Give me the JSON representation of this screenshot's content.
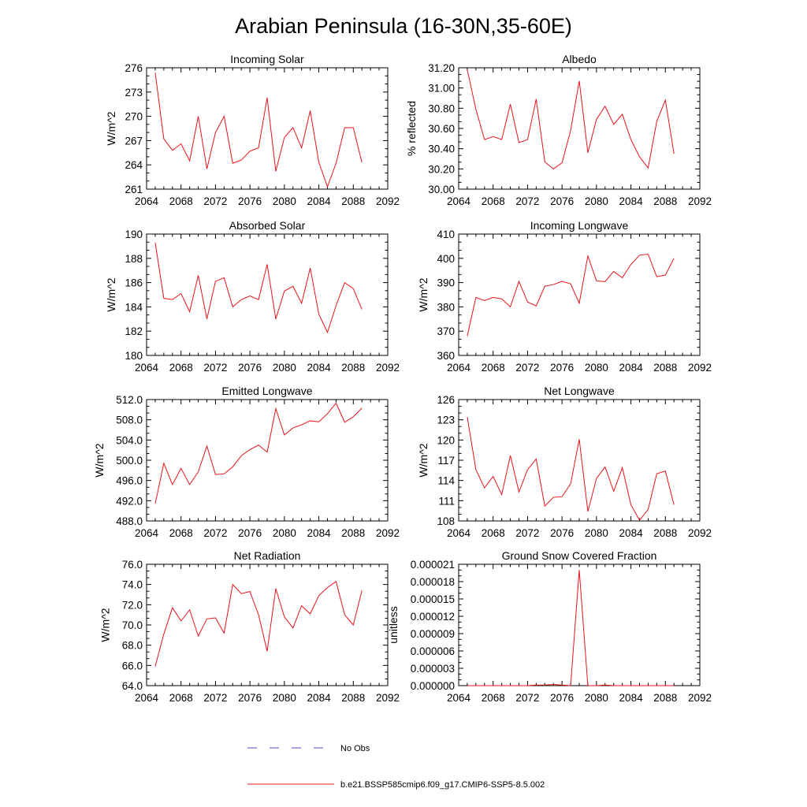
{
  "title": "Arabian Peninsula (16-30N,35-60E)",
  "colors": {
    "series": "#e8131b",
    "obs": "#4b4bd1",
    "axis": "#000000"
  },
  "legend": {
    "placement": "bottom-center",
    "entries": [
      {
        "label": "No Obs",
        "style": "dashed",
        "color": "#4b4bd1"
      },
      {
        "label": "b.e21.BSSP585cmip6.f09_g17.CMIP6-SSP5-8.5.002",
        "style": "solid",
        "color": "#e8131b"
      }
    ]
  },
  "chart_data": [
    {
      "type": "line",
      "title": "Incoming Solar",
      "ylabel": "W/m^2",
      "xlim": [
        2064,
        2092
      ],
      "ylim": [
        261,
        276
      ],
      "xticks": [
        "2064",
        "2068",
        "2072",
        "2076",
        "2080",
        "2084",
        "2088",
        "2092"
      ],
      "yticks": [
        "261",
        "264",
        "267",
        "270",
        "273",
        "276"
      ],
      "x": [
        2065,
        2066,
        2067,
        2068,
        2069,
        2070,
        2071,
        2072,
        2073,
        2074,
        2075,
        2076,
        2077,
        2078,
        2079,
        2080,
        2081,
        2082,
        2083,
        2084,
        2085,
        2086,
        2087,
        2088,
        2089
      ],
      "values": [
        275.4,
        267.2,
        265.8,
        266.6,
        264.5,
        270.0,
        263.5,
        268.0,
        270.0,
        264.2,
        264.6,
        265.7,
        266.1,
        272.3,
        263.2,
        267.4,
        268.6,
        266.1,
        270.7,
        264.3,
        261.3,
        264.2,
        268.6,
        268.6,
        264.3
      ]
    },
    {
      "type": "line",
      "title": "Albedo",
      "ylabel": "% reflected",
      "xlim": [
        2064,
        2092
      ],
      "ylim": [
        30.0,
        31.2
      ],
      "xticks": [
        "2064",
        "2068",
        "2072",
        "2076",
        "2080",
        "2084",
        "2088",
        "2092"
      ],
      "yticks": [
        "30.00",
        "30.20",
        "30.40",
        "30.60",
        "30.80",
        "31.00",
        "31.20"
      ],
      "x": [
        2065,
        2066,
        2067,
        2068,
        2069,
        2070,
        2071,
        2072,
        2073,
        2074,
        2075,
        2076,
        2077,
        2078,
        2079,
        2080,
        2081,
        2082,
        2083,
        2084,
        2085,
        2086,
        2087,
        2088,
        2089
      ],
      "values": [
        31.18,
        30.79,
        30.49,
        30.52,
        30.49,
        30.84,
        30.46,
        30.49,
        30.89,
        30.27,
        30.2,
        30.26,
        30.58,
        31.07,
        30.36,
        30.69,
        30.82,
        30.64,
        30.74,
        30.49,
        30.32,
        30.21,
        30.67,
        30.88,
        30.35
      ]
    },
    {
      "type": "line",
      "title": "Absorbed Solar",
      "ylabel": "W/m^2",
      "xlim": [
        2064,
        2092
      ],
      "ylim": [
        180,
        190
      ],
      "xticks": [
        "2064",
        "2068",
        "2072",
        "2076",
        "2080",
        "2084",
        "2088",
        "2092"
      ],
      "yticks": [
        "180",
        "182",
        "184",
        "186",
        "188",
        "190"
      ],
      "x": [
        2065,
        2066,
        2067,
        2068,
        2069,
        2070,
        2071,
        2072,
        2073,
        2074,
        2075,
        2076,
        2077,
        2078,
        2079,
        2080,
        2081,
        2082,
        2083,
        2084,
        2085,
        2086,
        2087,
        2088,
        2089
      ],
      "values": [
        189.3,
        184.7,
        184.6,
        185.1,
        183.6,
        186.6,
        183.0,
        186.1,
        186.4,
        184.0,
        184.6,
        184.9,
        184.6,
        187.5,
        183.0,
        185.3,
        185.7,
        184.3,
        187.2,
        183.4,
        181.9,
        184.1,
        186.0,
        185.5,
        183.8
      ]
    },
    {
      "type": "line",
      "title": "Incoming Longwave",
      "ylabel": "W/m^2",
      "xlim": [
        2064,
        2092
      ],
      "ylim": [
        360,
        410
      ],
      "xticks": [
        "2064",
        "2068",
        "2072",
        "2076",
        "2080",
        "2084",
        "2088",
        "2092"
      ],
      "yticks": [
        "360",
        "370",
        "380",
        "390",
        "400",
        "410"
      ],
      "x": [
        2065,
        2066,
        2067,
        2068,
        2069,
        2070,
        2071,
        2072,
        2073,
        2074,
        2075,
        2076,
        2077,
        2078,
        2079,
        2080,
        2081,
        2082,
        2083,
        2084,
        2085,
        2086,
        2087,
        2088,
        2089
      ],
      "values": [
        368.0,
        383.9,
        382.6,
        383.9,
        383.3,
        380.0,
        390.5,
        382.0,
        380.4,
        388.5,
        389.2,
        390.5,
        389.5,
        381.5,
        401.0,
        390.7,
        390.4,
        394.6,
        392.0,
        397.5,
        401.3,
        401.7,
        392.4,
        393.1,
        400.0
      ]
    },
    {
      "type": "line",
      "title": "Emitted Longwave",
      "ylabel": "W/m^2",
      "xlim": [
        2064,
        2092
      ],
      "ylim": [
        488.0,
        512.0
      ],
      "xticks": [
        "2064",
        "2068",
        "2072",
        "2076",
        "2080",
        "2084",
        "2088",
        "2092"
      ],
      "yticks": [
        "488.0",
        "492.0",
        "496.0",
        "500.0",
        "504.0",
        "508.0",
        "512.0"
      ],
      "x": [
        2065,
        2066,
        2067,
        2068,
        2069,
        2070,
        2071,
        2072,
        2073,
        2074,
        2075,
        2076,
        2077,
        2078,
        2079,
        2080,
        2081,
        2082,
        2083,
        2084,
        2085,
        2086,
        2087,
        2088,
        2089
      ],
      "values": [
        491.4,
        499.4,
        495.2,
        498.4,
        495.2,
        497.7,
        502.8,
        497.2,
        497.3,
        498.7,
        500.9,
        502.1,
        503.0,
        501.6,
        510.2,
        505.0,
        506.4,
        507.0,
        507.8,
        507.6,
        509.2,
        511.3,
        507.5,
        508.6,
        510.3
      ]
    },
    {
      "type": "line",
      "title": "Net Longwave",
      "ylabel": "W/m^2",
      "xlim": [
        2064,
        2092
      ],
      "ylim": [
        108,
        126
      ],
      "xticks": [
        "2064",
        "2068",
        "2072",
        "2076",
        "2080",
        "2084",
        "2088",
        "2092"
      ],
      "yticks": [
        "108",
        "111",
        "114",
        "117",
        "120",
        "123",
        "126"
      ],
      "x": [
        2065,
        2066,
        2067,
        2068,
        2069,
        2070,
        2071,
        2072,
        2073,
        2074,
        2075,
        2076,
        2077,
        2078,
        2079,
        2080,
        2081,
        2082,
        2083,
        2084,
        2085,
        2086,
        2087,
        2088,
        2089
      ],
      "values": [
        123.4,
        115.6,
        112.9,
        114.6,
        111.9,
        117.7,
        112.3,
        115.6,
        117.2,
        110.2,
        111.5,
        111.6,
        113.5,
        120.1,
        109.4,
        114.3,
        116.0,
        112.4,
        115.9,
        110.4,
        108.1,
        109.7,
        115.0,
        115.4,
        110.4
      ]
    },
    {
      "type": "line",
      "title": "Net Radiation",
      "ylabel": "W/m^2",
      "xlim": [
        2064,
        2092
      ],
      "ylim": [
        64.0,
        76.0
      ],
      "xticks": [
        "2064",
        "2068",
        "2072",
        "2076",
        "2080",
        "2084",
        "2088",
        "2092"
      ],
      "yticks": [
        "64.0",
        "66.0",
        "68.0",
        "70.0",
        "72.0",
        "74.0",
        "76.0"
      ],
      "x": [
        2065,
        2066,
        2067,
        2068,
        2069,
        2070,
        2071,
        2072,
        2073,
        2074,
        2075,
        2076,
        2077,
        2078,
        2079,
        2080,
        2081,
        2082,
        2083,
        2084,
        2085,
        2086,
        2087,
        2088,
        2089
      ],
      "values": [
        65.9,
        69.1,
        71.7,
        70.4,
        71.5,
        68.9,
        70.6,
        70.7,
        69.2,
        74.0,
        73.1,
        73.3,
        71.0,
        67.4,
        73.6,
        70.8,
        69.7,
        71.9,
        71.1,
        72.9,
        73.7,
        74.3,
        71.0,
        70.0,
        73.4
      ]
    },
    {
      "type": "line",
      "title": "Ground Snow Covered Fraction",
      "ylabel": "unitless",
      "xlim": [
        2064,
        2092
      ],
      "ylim": [
        0,
        2.1e-05
      ],
      "xticks": [
        "2064",
        "2068",
        "2072",
        "2076",
        "2080",
        "2084",
        "2088",
        "2092"
      ],
      "yticks": [
        "0.000000",
        "0.000003",
        "0.000006",
        "0.000009",
        "0.000012",
        "0.000015",
        "0.000018",
        "0.000021"
      ],
      "x": [
        2065,
        2066,
        2067,
        2068,
        2069,
        2070,
        2071,
        2072,
        2073,
        2074,
        2075,
        2076,
        2077,
        2078,
        2079,
        2080,
        2081,
        2082,
        2083,
        2084,
        2085,
        2086,
        2087,
        2088,
        2089
      ],
      "values": [
        0,
        0,
        0,
        0,
        0,
        0,
        0,
        0,
        1e-07,
        1e-07,
        2e-07,
        1e-07,
        0,
        2e-05,
        0,
        0,
        1e-07,
        0,
        0,
        0,
        0,
        0,
        0,
        0,
        0
      ]
    }
  ]
}
